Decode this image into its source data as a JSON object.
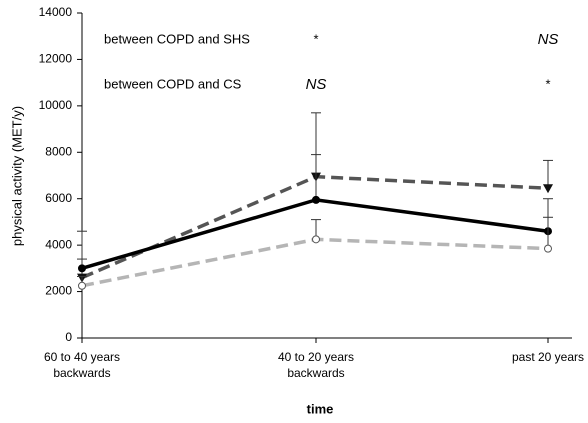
{
  "chart_data": {
    "type": "line",
    "categories": [
      "60 to 40 years\nbackwards",
      "40 to 20 years\nbackwards",
      "past 20 years"
    ],
    "x_label": "time",
    "y_label": "physical activity (MET/y)",
    "ylim": [
      0,
      14000
    ],
    "yticks": [
      0,
      2000,
      4000,
      6000,
      8000,
      10000,
      12000,
      14000
    ],
    "series": [
      {
        "color": "#555555",
        "dash": "12,6",
        "marker": "triangle",
        "values": [
          2600,
          6950,
          6450
        ],
        "errors": [
          800,
          2750,
          1200
        ]
      },
      {
        "color": "#000000",
        "dash": "",
        "marker": "circle",
        "values": [
          3000,
          5950,
          4600
        ],
        "errors": [
          1600,
          1950,
          1400
        ]
      },
      {
        "color": "#b5b5b5",
        "dash": "12,6",
        "marker": "open-circle",
        "values": [
          2250,
          4250,
          3850
        ],
        "errors": [
          400,
          850,
          1350
        ]
      }
    ],
    "comparisons": [
      {
        "label": "between COPD and SHS",
        "marks": [
          null,
          "*",
          "NS"
        ]
      },
      {
        "label": "between COPD and CS",
        "marks": [
          null,
          "NS",
          "*"
        ]
      }
    ]
  }
}
